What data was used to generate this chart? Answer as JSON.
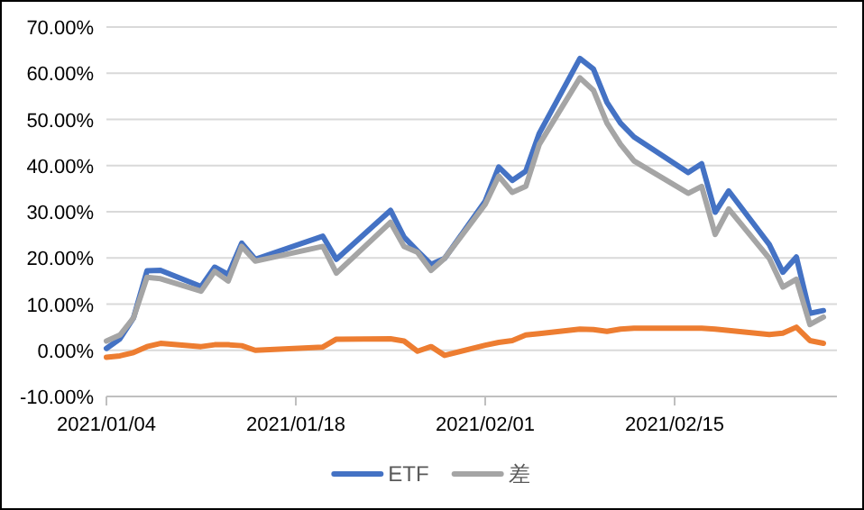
{
  "chart_data": {
    "type": "line",
    "x": [
      "2021-01-04",
      "2021-01-05",
      "2021-01-06",
      "2021-01-07",
      "2021-01-08",
      "2021-01-11",
      "2021-01-12",
      "2021-01-13",
      "2021-01-14",
      "2021-01-15",
      "2021-01-20",
      "2021-01-21",
      "2021-01-25",
      "2021-01-26",
      "2021-01-27",
      "2021-01-28",
      "2021-01-29",
      "2021-02-01",
      "2021-02-02",
      "2021-02-03",
      "2021-02-04",
      "2021-02-05",
      "2021-02-08",
      "2021-02-09",
      "2021-02-10",
      "2021-02-11",
      "2021-02-12",
      "2021-02-16",
      "2021-02-17",
      "2021-02-18",
      "2021-02-19",
      "2021-02-22",
      "2021-02-23",
      "2021-02-24",
      "2021-02-25",
      "2021-02-26"
    ],
    "series": [
      {
        "name": "ETF",
        "color": "#4472c4",
        "values": [
          0.4,
          2.5,
          7.0,
          17.2,
          17.3,
          13.8,
          18.0,
          16.4,
          23.2,
          19.7,
          24.7,
          19.7,
          30.3,
          24.5,
          21.5,
          18.6,
          19.9,
          32.3,
          39.7,
          36.8,
          38.8,
          47.0,
          63.2,
          60.9,
          53.7,
          49.2,
          46.2,
          38.5,
          40.4,
          29.9,
          34.5,
          22.9,
          16.9,
          20.2,
          8.0,
          8.6
        ]
      },
      {
        "color": "#ed7d31",
        "values": [
          -1.5,
          -1.2,
          -0.5,
          0.8,
          1.5,
          0.8,
          1.2,
          1.2,
          1.0,
          0.0,
          0.7,
          2.4,
          2.5,
          2.0,
          -0.2,
          0.8,
          -1.1,
          1.1,
          1.7,
          2.1,
          3.3,
          3.6,
          4.6,
          4.5,
          4.1,
          4.6,
          4.8,
          4.8,
          4.8,
          4.6,
          4.3,
          3.4,
          3.7,
          5.0,
          2.1,
          1.5
        ]
      },
      {
        "name": "差",
        "color": "#a5a5a5",
        "values": [
          2.0,
          3.3,
          7.0,
          15.8,
          15.5,
          12.8,
          17.1,
          15.0,
          22.5,
          19.3,
          22.5,
          16.7,
          27.7,
          22.5,
          21.2,
          17.3,
          19.9,
          31.6,
          37.7,
          34.2,
          35.5,
          44.6,
          59.0,
          56.3,
          49.2,
          44.6,
          41.0,
          34.0,
          35.5,
          25.1,
          30.6,
          19.9,
          13.7,
          15.4,
          5.6,
          7.2
        ]
      }
    ],
    "xlim": [
      "2021-01-04",
      "2021-02-27"
    ],
    "xticks": [
      {
        "value": "2021-01-04",
        "label": "2021/01/04"
      },
      {
        "value": "2021-01-18",
        "label": "2021/01/18"
      },
      {
        "value": "2021-02-01",
        "label": "2021/02/01"
      },
      {
        "value": "2021-02-15",
        "label": "2021/02/15"
      }
    ],
    "ylim": [
      -10,
      70
    ],
    "yticks": [
      {
        "value": -10,
        "label": "-10.00%"
      },
      {
        "value": 0,
        "label": "0.00%"
      },
      {
        "value": 10,
        "label": "10.00%"
      },
      {
        "value": 20,
        "label": "20.00%"
      },
      {
        "value": 30,
        "label": "30.00%"
      },
      {
        "value": 40,
        "label": "40.00%"
      },
      {
        "value": 50,
        "label": "50.00%"
      },
      {
        "value": 60,
        "label": "60.00%"
      },
      {
        "value": 70,
        "label": "70.00%"
      }
    ],
    "grid": "y",
    "legend": "bottom",
    "line_style": "solid"
  }
}
